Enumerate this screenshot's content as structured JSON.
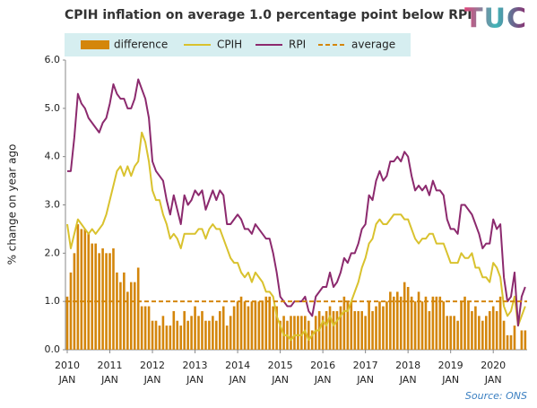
{
  "chart_data": {
    "type": "bar-line",
    "title": "CPIH  inflation on average 1.0 percentage point below RPI",
    "logo": "TUC",
    "y_label": "% change on year ago",
    "source": "Source: ONS",
    "categories": [
      "2010 JAN",
      null,
      null,
      null,
      null,
      null,
      null,
      null,
      null,
      null,
      null,
      null,
      "2011 JAN",
      null,
      null,
      null,
      null,
      null,
      null,
      null,
      null,
      null,
      null,
      null,
      "2012 JAN",
      null,
      null,
      null,
      null,
      null,
      null,
      null,
      null,
      null,
      null,
      null,
      "2013 JAN",
      null,
      null,
      null,
      null,
      null,
      null,
      null,
      null,
      null,
      null,
      null,
      "2014 JAN",
      null,
      null,
      null,
      null,
      null,
      null,
      null,
      null,
      null,
      null,
      null,
      "2015 JAN",
      null,
      null,
      null,
      null,
      null,
      null,
      null,
      null,
      null,
      null,
      null,
      "2016 JAN",
      null,
      null,
      null,
      null,
      null,
      null,
      null,
      null,
      null,
      null,
      null,
      "2017 JAN",
      null,
      null,
      null,
      null,
      null,
      null,
      null,
      null,
      null,
      null,
      null,
      "2018 JAN",
      null,
      null,
      null,
      null,
      null,
      null,
      null,
      null,
      null,
      null,
      null,
      "2019 JAN",
      null,
      null,
      null,
      null,
      null,
      null,
      null,
      null,
      null,
      null,
      null,
      "2020 JAN",
      null,
      null,
      null,
      null,
      null,
      null,
      null,
      null,
      null
    ],
    "series": [
      {
        "name": "difference",
        "kind": "bar",
        "color": "#d4860b",
        "values": [
          1.1,
          1.6,
          2.0,
          2.6,
          2.5,
          2.5,
          2.4,
          2.2,
          2.2,
          2.0,
          2.1,
          2.0,
          2.0,
          2.1,
          1.6,
          1.4,
          1.6,
          1.2,
          1.4,
          1.4,
          1.7,
          0.9,
          0.9,
          0.9,
          0.6,
          0.6,
          0.5,
          0.7,
          0.5,
          0.5,
          0.8,
          0.6,
          0.5,
          0.8,
          0.6,
          0.7,
          0.9,
          0.7,
          0.8,
          0.6,
          0.6,
          0.7,
          0.6,
          0.8,
          0.9,
          0.5,
          0.7,
          0.9,
          1.0,
          1.1,
          1.0,
          0.9,
          1.0,
          1.0,
          1.0,
          1.0,
          1.1,
          1.1,
          0.9,
          0.9,
          0.6,
          0.7,
          0.6,
          0.7,
          0.7,
          0.7,
          0.7,
          0.7,
          0.6,
          0.4,
          0.7,
          0.8,
          0.7,
          0.8,
          0.9,
          0.8,
          0.8,
          0.9,
          1.1,
          1.0,
          1.0,
          0.8,
          0.8,
          0.8,
          0.7,
          1.0,
          0.8,
          0.9,
          1.0,
          0.9,
          1.0,
          1.2,
          1.1,
          1.2,
          1.1,
          1.4,
          1.3,
          1.1,
          1.0,
          1.2,
          1.0,
          1.1,
          0.8,
          1.1,
          1.1,
          1.1,
          1.0,
          0.7,
          0.7,
          0.7,
          0.6,
          1.0,
          1.1,
          1.0,
          0.8,
          0.9,
          0.7,
          0.6,
          0.7,
          0.8,
          0.9,
          0.8,
          1.1,
          0.6,
          0.3,
          0.3,
          0.5,
          0.0,
          0.4,
          0.4
        ]
      },
      {
        "name": "CPIH",
        "kind": "line",
        "color": "#d9c22e",
        "values": [
          2.6,
          2.1,
          2.4,
          2.7,
          2.6,
          2.5,
          2.4,
          2.5,
          2.4,
          2.5,
          2.6,
          2.8,
          3.1,
          3.4,
          3.7,
          3.8,
          3.6,
          3.8,
          3.6,
          3.8,
          3.9,
          4.5,
          4.3,
          3.9,
          3.3,
          3.1,
          3.1,
          2.8,
          2.6,
          2.3,
          2.4,
          2.3,
          2.1,
          2.4,
          2.4,
          2.4,
          2.4,
          2.5,
          2.5,
          2.3,
          2.5,
          2.6,
          2.5,
          2.5,
          2.3,
          2.1,
          1.9,
          1.8,
          1.8,
          1.6,
          1.5,
          1.6,
          1.4,
          1.6,
          1.5,
          1.4,
          1.2,
          1.2,
          1.1,
          0.7,
          0.5,
          0.3,
          0.3,
          0.2,
          0.3,
          0.3,
          0.3,
          0.4,
          0.2,
          0.3,
          0.4,
          0.4,
          0.6,
          0.5,
          0.7,
          0.5,
          0.6,
          0.7,
          0.8,
          0.8,
          1.0,
          1.2,
          1.4,
          1.7,
          1.9,
          2.2,
          2.3,
          2.6,
          2.7,
          2.6,
          2.6,
          2.7,
          2.8,
          2.8,
          2.8,
          2.7,
          2.7,
          2.5,
          2.3,
          2.2,
          2.3,
          2.3,
          2.4,
          2.4,
          2.2,
          2.2,
          2.2,
          2.0,
          1.8,
          1.8,
          1.8,
          2.0,
          1.9,
          1.9,
          2.0,
          1.7,
          1.7,
          1.5,
          1.5,
          1.4,
          1.8,
          1.7,
          1.5,
          0.9,
          0.7,
          0.8,
          1.1,
          0.5,
          0.7,
          0.9
        ]
      },
      {
        "name": "RPI",
        "kind": "line",
        "color": "#8c2a6e",
        "values": [
          3.7,
          3.7,
          4.4,
          5.3,
          5.1,
          5.0,
          4.8,
          4.7,
          4.6,
          4.5,
          4.7,
          4.8,
          5.1,
          5.5,
          5.3,
          5.2,
          5.2,
          5.0,
          5.0,
          5.2,
          5.6,
          5.4,
          5.2,
          4.8,
          3.9,
          3.7,
          3.6,
          3.5,
          3.1,
          2.8,
          3.2,
          2.9,
          2.6,
          3.2,
          3.0,
          3.1,
          3.3,
          3.2,
          3.3,
          2.9,
          3.1,
          3.3,
          3.1,
          3.3,
          3.2,
          2.6,
          2.6,
          2.7,
          2.8,
          2.7,
          2.5,
          2.5,
          2.4,
          2.6,
          2.5,
          2.4,
          2.3,
          2.3,
          2.0,
          1.6,
          1.1,
          1.0,
          0.9,
          0.9,
          1.0,
          1.0,
          1.0,
          1.1,
          0.8,
          0.7,
          1.1,
          1.2,
          1.3,
          1.3,
          1.6,
          1.3,
          1.4,
          1.6,
          1.9,
          1.8,
          2.0,
          2.0,
          2.2,
          2.5,
          2.6,
          3.2,
          3.1,
          3.5,
          3.7,
          3.5,
          3.6,
          3.9,
          3.9,
          4.0,
          3.9,
          4.1,
          4.0,
          3.6,
          3.3,
          3.4,
          3.3,
          3.4,
          3.2,
          3.5,
          3.3,
          3.3,
          3.2,
          2.7,
          2.5,
          2.5,
          2.4,
          3.0,
          3.0,
          2.9,
          2.8,
          2.6,
          2.4,
          2.1,
          2.2,
          2.2,
          2.7,
          2.5,
          2.6,
          1.5,
          1.0,
          1.1,
          1.6,
          0.5,
          1.1,
          1.3
        ]
      },
      {
        "name": "average",
        "kind": "dashed",
        "color": "#d4860b",
        "value": 1.0
      }
    ],
    "ylim": [
      0,
      6
    ],
    "yticks": [
      {
        "value": 0,
        "label": "0.0"
      },
      {
        "value": 1,
        "label": "1.0"
      },
      {
        "value": 2,
        "label": "2.0"
      },
      {
        "value": 3,
        "label": "3.0"
      },
      {
        "value": 4,
        "label": "4.0"
      },
      {
        "value": 5,
        "label": "5.0"
      },
      {
        "value": 6,
        "label": "6.0"
      }
    ],
    "grid": false
  }
}
